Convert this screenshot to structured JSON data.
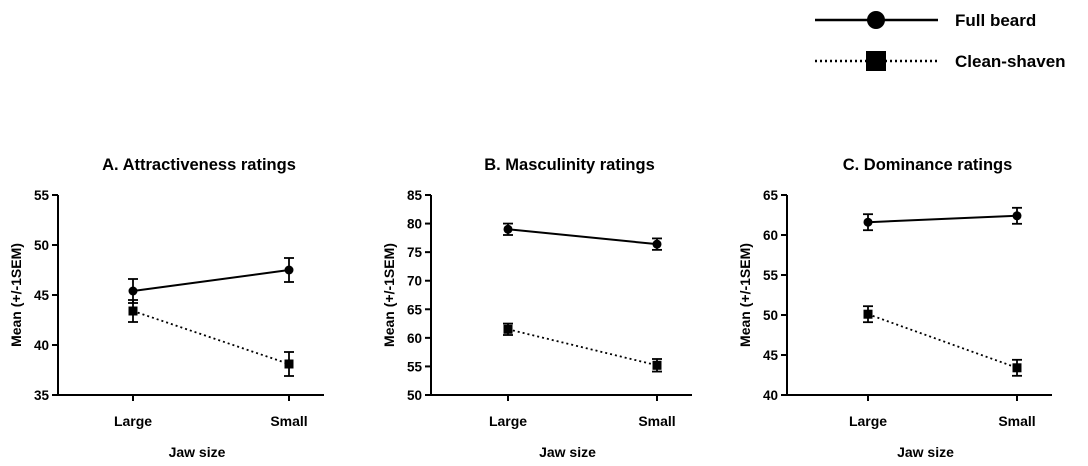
{
  "legend": [
    {
      "label": "Full beard",
      "marker": "circle",
      "line": "solid"
    },
    {
      "label": "Clean-shaven",
      "marker": "square",
      "line": "dotted"
    }
  ],
  "chart_data": [
    {
      "type": "line",
      "title": "A. Attractiveness ratings",
      "xlabel": "Jaw size",
      "ylabel": "Mean (+/-1SEM)",
      "categories": [
        "Large",
        "Small"
      ],
      "ylim": [
        35,
        55
      ],
      "yticks": [
        35,
        40,
        45,
        50,
        55
      ],
      "series": [
        {
          "name": "Full beard",
          "values": [
            45.4,
            47.5
          ],
          "errors": [
            1.2,
            1.2
          ]
        },
        {
          "name": "Clean-shaven",
          "values": [
            43.4,
            38.1
          ],
          "errors": [
            1.1,
            1.2
          ]
        }
      ]
    },
    {
      "type": "line",
      "title": "B. Masculinity ratings",
      "xlabel": "Jaw size",
      "ylabel": "Mean (+/-1SEM)",
      "categories": [
        "Large",
        "Small"
      ],
      "ylim": [
        50,
        85
      ],
      "yticks": [
        50,
        55,
        60,
        65,
        70,
        75,
        80,
        85
      ],
      "series": [
        {
          "name": "Full beard",
          "values": [
            79.0,
            76.4
          ],
          "errors": [
            1.0,
            1.0
          ]
        },
        {
          "name": "Clean-shaven",
          "values": [
            61.5,
            55.2
          ],
          "errors": [
            1.0,
            1.1
          ]
        }
      ]
    },
    {
      "type": "line",
      "title": "C. Dominance ratings",
      "xlabel": "Jaw size",
      "ylabel": "Mean (+/-1SEM)",
      "categories": [
        "Large",
        "Small"
      ],
      "ylim": [
        40,
        65
      ],
      "yticks": [
        40,
        45,
        50,
        55,
        60,
        65
      ],
      "series": [
        {
          "name": "Full beard",
          "values": [
            61.6,
            62.4
          ],
          "errors": [
            1.0,
            1.0
          ]
        },
        {
          "name": "Clean-shaven",
          "values": [
            50.1,
            43.4
          ],
          "errors": [
            1.0,
            1.0
          ]
        }
      ]
    }
  ]
}
